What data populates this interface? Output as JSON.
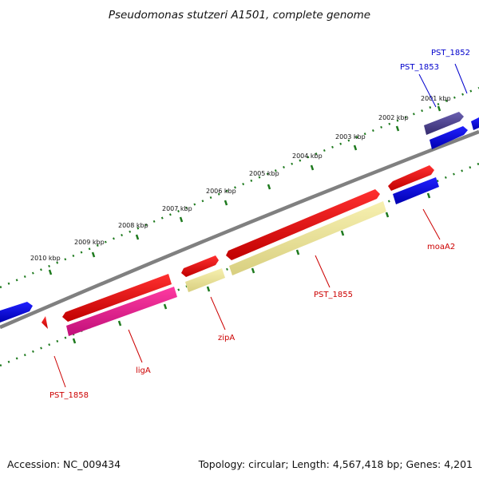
{
  "title": "Pseudomonas stutzeri A1501, complete genome",
  "footer": {
    "accession": "Accession: NC_009434",
    "topology": "Topology: circular; Length: 4,567,418 bp; Genes: 4,201"
  },
  "ticks": [
    "2001 kbp",
    "2002 kbp",
    "2003 kbp",
    "2004 kbp",
    "2005 kbp",
    "2006 kbp",
    "2007 kbp",
    "2008 kbp",
    "2009 kbp",
    "2010 kbp"
  ],
  "gene_labels": [
    {
      "name": "PST_1852",
      "color": "#0000cc"
    },
    {
      "name": "PST_1853",
      "color": "#0000cc"
    },
    {
      "name": "moaA2",
      "color": "#cc0000"
    },
    {
      "name": "PST_1855",
      "color": "#cc0000"
    },
    {
      "name": "zipA",
      "color": "#cc0000"
    },
    {
      "name": "ligA",
      "color": "#cc0000"
    },
    {
      "name": "PST_1858",
      "color": "#cc0000"
    }
  ],
  "colors": {
    "backbone": "#808080",
    "tick_marks": "#1e7a1e",
    "cds_forward": "#ff0000",
    "cds_reverse": "#0000ff",
    "rna_forward": "#ff1493",
    "light_feature": "#f0e68c",
    "dark_feature": "#483d8b"
  }
}
